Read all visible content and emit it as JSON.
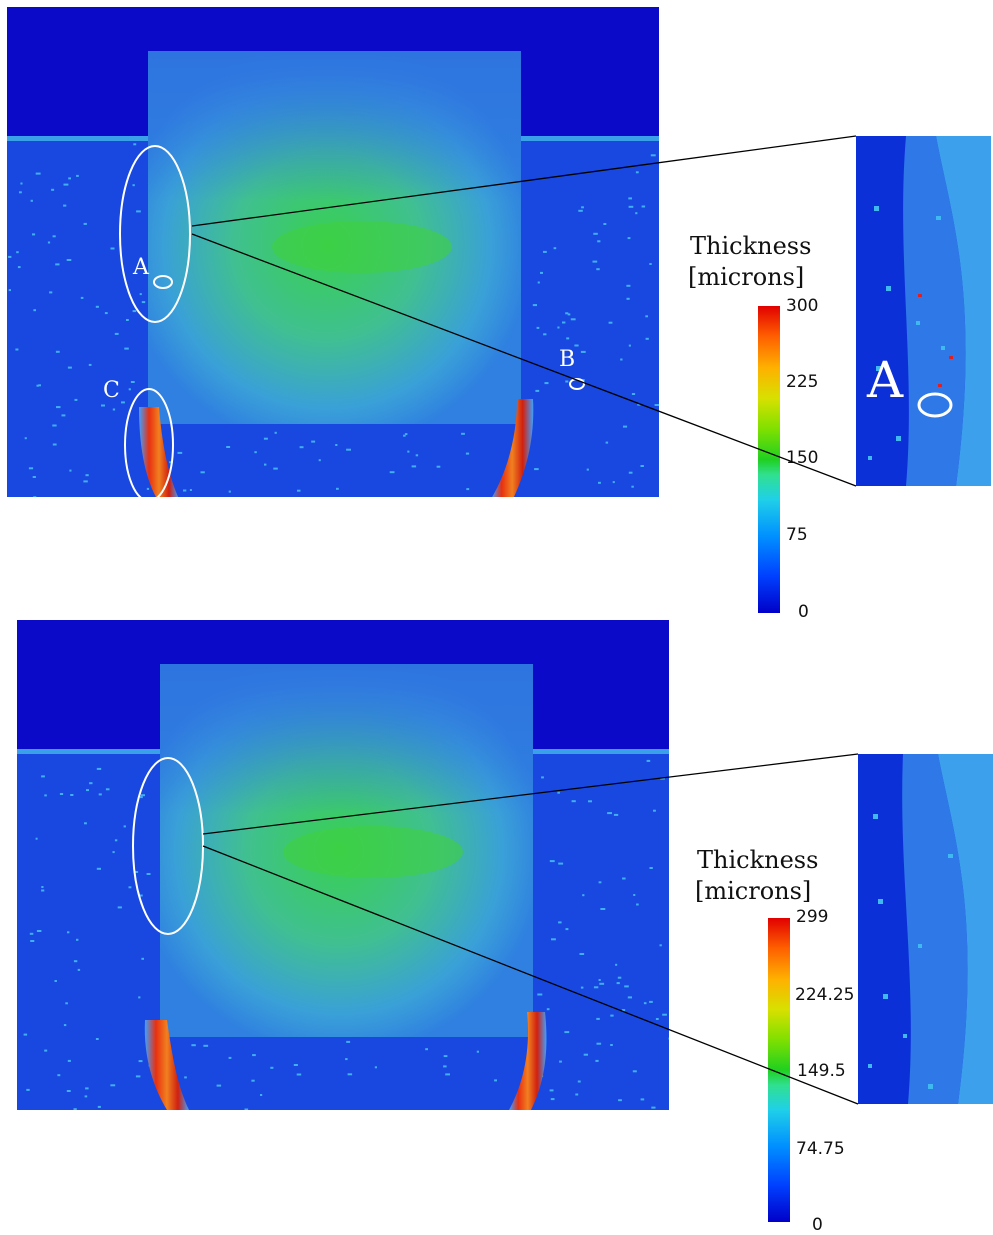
{
  "figures": [
    {
      "id": "top",
      "legend_title_line1": "Thickness",
      "legend_title_line2": "[microns]",
      "colorbar_ticks": [
        "300",
        "225",
        "150",
        "75",
        "0"
      ],
      "labels": {
        "a": "A",
        "b": "B",
        "c": "C",
        "zoom_a": "A"
      }
    },
    {
      "id": "bottom",
      "legend_title_line1": "Thickness",
      "legend_title_line2": "[microns]",
      "colorbar_ticks": [
        "299",
        "224.25",
        "149.5",
        "74.75",
        "0"
      ]
    }
  ],
  "colors": {
    "background_blue": "#0a0ac8",
    "field_blue": "#1848e0",
    "film_cyan": "#3c9ce8",
    "film_green": "#38d060",
    "hot_red": "#e02010",
    "hot_orange": "#f07020"
  }
}
